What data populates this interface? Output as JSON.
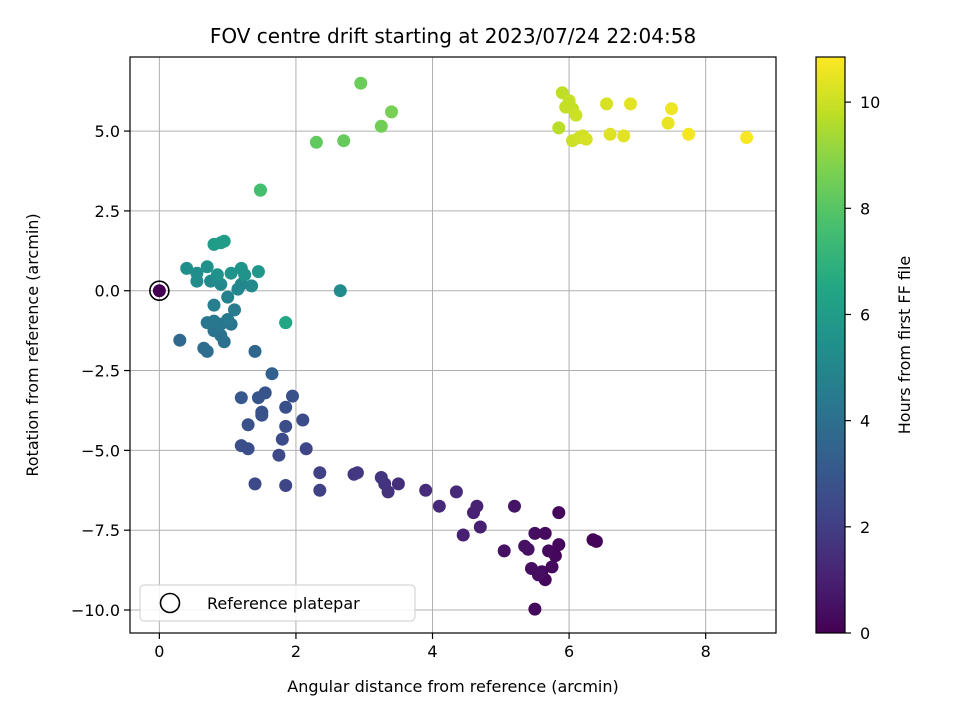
{
  "chart_data": {
    "type": "scatter",
    "title": "FOV centre drift starting at 2023/07/24 22:04:58",
    "xlabel": "Angular distance from reference (arcmin)",
    "ylabel": "Rotation from reference (arcmin)",
    "xlim": [
      -0.43,
      9.03
    ],
    "ylim": [
      -10.72,
      7.32
    ],
    "xticks": [
      0,
      2,
      4,
      6,
      8
    ],
    "xtick_labels": [
      "0",
      "2",
      "4",
      "6",
      "8"
    ],
    "yticks": [
      -10,
      -7.5,
      -5,
      -2.5,
      0,
      2.5,
      5
    ],
    "ytick_labels": [
      "−10.0",
      "−7.5",
      "−5.0",
      "−2.5",
      "0.0",
      "2.5",
      "5.0"
    ],
    "grid": true,
    "colormap": "viridis",
    "colorbar": {
      "label": "Hours from first FF file",
      "range": [
        0,
        10.85
      ],
      "ticks": [
        0,
        2,
        4,
        6,
        8,
        10
      ],
      "tick_labels": [
        "0",
        "2",
        "4",
        "6",
        "8",
        "10"
      ]
    },
    "legend": {
      "position": "lower-left",
      "entries": [
        {
          "label": "Reference platepar",
          "marker": "open-circle"
        }
      ]
    },
    "reference_point": {
      "x": 0,
      "y": 0
    },
    "series": [
      {
        "points": [
          [
            5.5,
            -9.97,
            0.3
          ],
          [
            5.45,
            -8.7,
            0.4
          ],
          [
            5.6,
            -8.8,
            0.3
          ],
          [
            5.65,
            -9.05,
            0.2
          ],
          [
            5.55,
            -8.9,
            0.4
          ],
          [
            5.75,
            -8.65,
            0.3
          ],
          [
            5.8,
            -8.3,
            0.2
          ],
          [
            5.7,
            -8.15,
            0.3
          ],
          [
            5.85,
            -7.95,
            0.2
          ],
          [
            5.65,
            -7.6,
            0.3
          ],
          [
            5.5,
            -7.6,
            0.4
          ],
          [
            5.35,
            -8.0,
            0.5
          ],
          [
            5.4,
            -8.1,
            0.5
          ],
          [
            5.05,
            -8.15,
            0.5
          ],
          [
            5.2,
            -6.75,
            0.6
          ],
          [
            5.85,
            -6.95,
            0.2
          ],
          [
            6.35,
            -7.8,
            0.1
          ],
          [
            6.4,
            -7.85,
            0.1
          ],
          [
            4.7,
            -7.4,
            1.0
          ],
          [
            4.45,
            -7.65,
            1.0
          ],
          [
            4.6,
            -6.95,
            1.1
          ],
          [
            4.65,
            -6.75,
            1.1
          ],
          [
            4.35,
            -6.3,
            1.3
          ],
          [
            4.1,
            -6.75,
            1.3
          ],
          [
            3.9,
            -6.25,
            1.4
          ],
          [
            3.5,
            -6.05,
            1.5
          ],
          [
            3.35,
            -6.3,
            1.6
          ],
          [
            3.3,
            -6.05,
            1.6
          ],
          [
            3.25,
            -5.85,
            1.7
          ],
          [
            2.9,
            -5.7,
            1.8
          ],
          [
            2.85,
            -5.75,
            1.8
          ],
          [
            2.35,
            -5.7,
            2.1
          ],
          [
            2.35,
            -6.25,
            2.1
          ],
          [
            1.85,
            -6.1,
            2.3
          ],
          [
            1.4,
            -6.05,
            2.4
          ],
          [
            1.75,
            -5.15,
            2.4
          ],
          [
            2.15,
            -4.95,
            2.3
          ],
          [
            1.2,
            -4.85,
            2.6
          ],
          [
            1.3,
            -4.95,
            2.6
          ],
          [
            1.8,
            -4.65,
            2.5
          ],
          [
            1.85,
            -4.25,
            2.6
          ],
          [
            2.1,
            -4.05,
            2.5
          ],
          [
            1.3,
            -4.2,
            2.8
          ],
          [
            1.5,
            -3.9,
            2.8
          ],
          [
            1.5,
            -3.8,
            2.8
          ],
          [
            1.85,
            -3.65,
            2.7
          ],
          [
            1.95,
            -3.3,
            2.7
          ],
          [
            1.45,
            -3.35,
            2.9
          ],
          [
            1.55,
            -3.2,
            2.9
          ],
          [
            1.2,
            -3.35,
            3.0
          ],
          [
            1.65,
            -2.6,
            3.4
          ],
          [
            0.3,
            -1.55,
            3.7
          ],
          [
            1.4,
            -1.9,
            3.6
          ],
          [
            0.65,
            -1.8,
            3.9
          ],
          [
            0.7,
            -1.9,
            3.9
          ],
          [
            0.95,
            -1.6,
            4.0
          ],
          [
            0.8,
            -1.25,
            4.1
          ],
          [
            0.9,
            -1.4,
            4.1
          ],
          [
            1.05,
            -1.05,
            4.2
          ],
          [
            0.7,
            -1.0,
            4.3
          ],
          [
            0.8,
            -0.95,
            4.3
          ],
          [
            0.9,
            -1.05,
            4.3
          ],
          [
            1.0,
            -0.9,
            4.4
          ],
          [
            1.1,
            -0.6,
            4.5
          ],
          [
            0.8,
            -0.45,
            4.6
          ],
          [
            1.0,
            -0.2,
            4.8
          ],
          [
            1.15,
            0.05,
            5.0
          ],
          [
            1.2,
            0.2,
            5.0
          ],
          [
            1.35,
            0.15,
            5.1
          ],
          [
            0.9,
            0.2,
            5.1
          ],
          [
            0.75,
            0.3,
            5.1
          ],
          [
            0.55,
            0.3,
            5.2
          ],
          [
            0.55,
            0.55,
            5.3
          ],
          [
            0.4,
            0.7,
            5.4
          ],
          [
            0.7,
            0.75,
            5.5
          ],
          [
            0.85,
            0.5,
            5.5
          ],
          [
            1.05,
            0.55,
            5.6
          ],
          [
            1.2,
            0.7,
            5.6
          ],
          [
            1.25,
            0.5,
            5.6
          ],
          [
            1.45,
            0.6,
            5.7
          ],
          [
            0.8,
            1.45,
            5.9
          ],
          [
            0.9,
            1.5,
            6.0
          ],
          [
            0.95,
            1.55,
            6.0
          ],
          [
            2.65,
            0.0,
            5.2
          ],
          [
            1.85,
            -1.0,
            6.4
          ],
          [
            1.85,
            -1.0,
            6.5
          ],
          [
            1.48,
            3.15,
            7.4
          ],
          [
            1.48,
            3.15,
            7.6
          ],
          [
            2.3,
            4.65,
            8.2
          ],
          [
            2.7,
            4.7,
            8.3
          ],
          [
            3.25,
            5.15,
            8.5
          ],
          [
            3.4,
            5.6,
            8.6
          ],
          [
            2.95,
            6.5,
            8.4
          ],
          [
            5.85,
            5.1,
            9.7
          ],
          [
            5.9,
            6.2,
            9.8
          ],
          [
            5.95,
            5.75,
            9.9
          ],
          [
            6.0,
            5.95,
            9.9
          ],
          [
            6.05,
            5.7,
            9.9
          ],
          [
            6.05,
            4.7,
            10.0
          ],
          [
            6.1,
            5.5,
            10.0
          ],
          [
            6.15,
            4.8,
            10.1
          ],
          [
            6.2,
            4.85,
            10.1
          ],
          [
            6.25,
            4.75,
            10.2
          ],
          [
            6.55,
            5.85,
            10.2
          ],
          [
            6.6,
            4.9,
            10.3
          ],
          [
            6.8,
            4.85,
            10.4
          ],
          [
            6.9,
            5.85,
            10.4
          ],
          [
            7.45,
            5.25,
            10.5
          ],
          [
            7.5,
            5.7,
            10.6
          ],
          [
            7.75,
            4.9,
            10.7
          ],
          [
            8.6,
            4.8,
            10.8
          ]
        ]
      }
    ]
  }
}
